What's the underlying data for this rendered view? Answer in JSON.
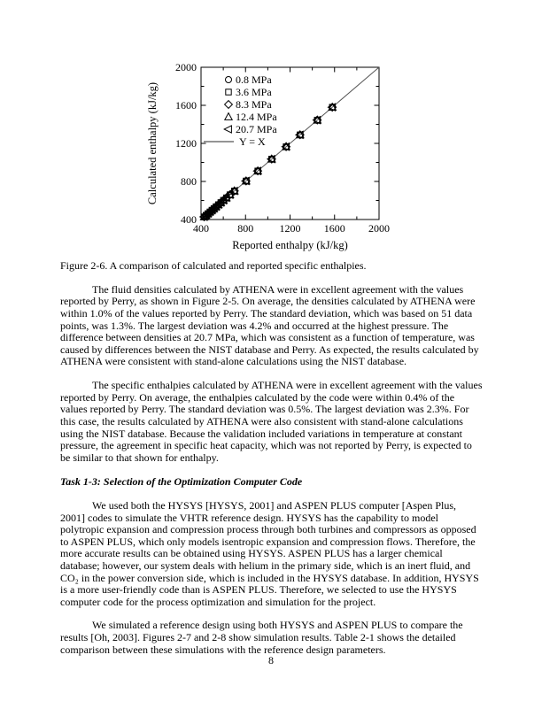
{
  "figure": {
    "caption": "Figure 2-6. A comparison of calculated and reported specific enthalpies."
  },
  "chart_data": {
    "type": "scatter",
    "title": "",
    "xlabel": "Reported enthalpy (kJ/kg)",
    "ylabel": "Calculated enthalpy (kJ/kg)",
    "xlim": [
      400,
      2000
    ],
    "ylim": [
      400,
      2000
    ],
    "xticks": [
      400,
      800,
      1200,
      1600,
      2000
    ],
    "yticks": [
      400,
      800,
      1200,
      1600,
      2000
    ],
    "minor_xticks": [
      600,
      1000,
      1400,
      1800
    ],
    "minor_yticks": [
      600,
      1000,
      1400,
      1800
    ],
    "grid": false,
    "legend_position": "upper-left-inside",
    "ink_color": "#000000",
    "reference_line_color": "#555555",
    "x": [
      428,
      445,
      462,
      480,
      498,
      516,
      535,
      556,
      578,
      602,
      628,
      660,
      700,
      805,
      910,
      1035,
      1165,
      1290,
      1445,
      1580
    ],
    "series": [
      {
        "name": "0.8 MPa",
        "marker": "circle",
        "y": [
          428,
          445,
          462,
          480,
          498,
          516,
          535,
          556,
          578,
          602,
          628,
          660,
          700,
          805,
          910,
          1035,
          1165,
          1290,
          1445,
          1580
        ]
      },
      {
        "name": "3.6 MPa",
        "marker": "square",
        "y": [
          428,
          445,
          462,
          480,
          498,
          516,
          535,
          556,
          578,
          602,
          628,
          660,
          700,
          805,
          910,
          1035,
          1165,
          1290,
          1445,
          1580
        ]
      },
      {
        "name": "8.3 MPa",
        "marker": "diamond",
        "y": [
          428,
          445,
          462,
          480,
          498,
          516,
          535,
          556,
          578,
          602,
          628,
          660,
          700,
          805,
          910,
          1035,
          1165,
          1290,
          1445,
          1580
        ]
      },
      {
        "name": "12.4 MPa",
        "marker": "triangle-up",
        "y": [
          428,
          445,
          462,
          480,
          498,
          516,
          535,
          556,
          578,
          602,
          628,
          660,
          700,
          805,
          910,
          1035,
          1165,
          1290,
          1445,
          1580
        ]
      },
      {
        "name": "20.7 MPa",
        "marker": "triangle-left",
        "y": [
          428,
          445,
          462,
          480,
          498,
          516,
          535,
          556,
          578,
          602,
          628,
          660,
          700,
          805,
          910,
          1035,
          1165,
          1290,
          1445,
          1580
        ]
      }
    ],
    "reference_line": {
      "label": "Y = X",
      "from": [
        400,
        400
      ],
      "to": [
        2000,
        2000
      ]
    }
  },
  "main": {
    "paragraphs": [
      "The fluid densities calculated by ATHENA were in excellent agreement with the values reported by Perry, as shown in Figure 2-5. On average, the densities calculated by ATHENA were within 1.0% of the values reported by Perry. The standard deviation, which was based on 51 data points, was 1.3%. The largest deviation was 4.2% and occurred at the highest pressure. The difference between densities at 20.7 MPa, which was consistent as a function of temperature, was caused by differences between the NIST database and Perry. As expected, the results calculated by ATHENA were consistent with stand-alone calculations using the NIST database.",
      "The specific enthalpies calculated by ATHENA were in excellent agreement with the values reported by Perry. On average, the enthalpies calculated by the code were within 0.4% of the values reported by Perry. The standard deviation was 0.5%. The largest deviation was 2.3%. For this case, the results calculated by ATHENA were also consistent with stand-alone calculations using the NIST database. Because the validation included variations in temperature at constant pressure, the agreement in specific heat capacity, which was not reported by Perry, is expected to be similar to that shown for enthalpy.",
      "We used both the HYSYS [HYSYS, 2001] and ASPEN PLUS computer [Aspen Plus, 2001] codes to simulate the VHTR reference design. HYSYS has the capability to model polytropic expansion and compression process through both turbines and compressors as opposed to ASPEN PLUS, which only models isentropic expansion and compression flows. Therefore, the more accurate results can be obtained using HYSYS. ASPEN PLUS has a larger chemical database; however, our system deals with helium in the primary side, which is an inert fluid, and CO₂ in the power conversion side, which is included in the HYSYS database. In addition, HYSYS is a more user-friendly code than is ASPEN PLUS. Therefore, we selected to use the HYSYS computer code for the process optimization and simulation for the project.",
      "We simulated a reference design using both HYSYS and ASPEN PLUS to compare the results [Oh, 2003]. Figures 2-7 and 2-8 show simulation results. Table 2-1 shows the detailed comparison between these simulations with the reference design parameters."
    ],
    "heading": "Task 1-3: Selection of the Optimization Computer Code"
  },
  "page": {
    "number": "8"
  }
}
